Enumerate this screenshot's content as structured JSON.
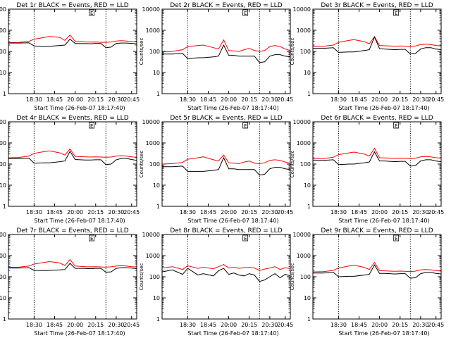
{
  "figure": {
    "y_axis_label": "Counts/sec",
    "x_axis_label": "Start Time (26-Feb-07 18:17:40)",
    "x_tick_labels": [
      "18:30",
      "18:45",
      "20:00",
      "20:15",
      "20:30",
      "20:45"
    ],
    "y_tick_labels": [
      "1",
      "10",
      "100",
      "1000",
      "10000"
    ],
    "legend_marker": "E"
  },
  "chart_data": [
    {
      "type": "line",
      "title": "Det 1r BLACK = Events, RED = LLD",
      "xlabel": "Start Time (26-Feb-07 18:17:40)",
      "ylabel": "Counts/sec",
      "y_scale": "log",
      "ylim": [
        1,
        10000
      ],
      "x_ticks": [
        "18:30",
        "18:45",
        "20:00",
        "20:15",
        "20:30",
        "20:45"
      ],
      "x": [
        0,
        0.08,
        0.16,
        0.2,
        0.28,
        0.32,
        0.4,
        0.44,
        0.48,
        0.52,
        0.56,
        0.6,
        0.64,
        0.68,
        0.72,
        0.76,
        0.8,
        0.84,
        0.88,
        0.92,
        0.96,
        1
      ],
      "dotted_vlines": [
        0.2,
        0.76
      ],
      "series": [
        {
          "name": "Events",
          "color": "#000000",
          "values": [
            250,
            250,
            255,
            180,
            170,
            175,
            190,
            200,
            380,
            240,
            235,
            235,
            230,
            240,
            240,
            150,
            160,
            240,
            250,
            250,
            240,
            230
          ]
        },
        {
          "name": "LLD",
          "color": "#ff0000",
          "values": [
            260,
            265,
            300,
            380,
            460,
            510,
            460,
            330,
            600,
            300,
            290,
            280,
            275,
            280,
            270,
            270,
            280,
            310,
            320,
            310,
            290,
            280
          ]
        }
      ]
    },
    {
      "type": "line",
      "title": "Det 2r BLACK = Events, RED = LLD",
      "xlabel": "Start Time (26-Feb-07 18:17:40)",
      "ylabel": "Counts/sec",
      "y_scale": "log",
      "ylim": [
        1,
        10000
      ],
      "x_ticks": [
        "18:30",
        "18:45",
        "20:00",
        "20:15",
        "20:30",
        "20:45"
      ],
      "x": [
        0,
        0.08,
        0.16,
        0.2,
        0.28,
        0.32,
        0.4,
        0.44,
        0.48,
        0.52,
        0.56,
        0.6,
        0.64,
        0.68,
        0.72,
        0.76,
        0.8,
        0.84,
        0.88,
        0.92,
        0.96,
        1
      ],
      "dotted_vlines": [
        0.2,
        0.76
      ],
      "series": [
        {
          "name": "Events",
          "color": "#000000",
          "values": [
            75,
            75,
            80,
            45,
            50,
            50,
            55,
            60,
            200,
            65,
            65,
            60,
            60,
            60,
            60,
            30,
            32,
            60,
            70,
            70,
            60,
            55
          ]
        },
        {
          "name": "LLD",
          "color": "#ff0000",
          "values": [
            95,
            100,
            120,
            170,
            190,
            200,
            150,
            130,
            350,
            110,
            105,
            100,
            120,
            140,
            110,
            100,
            110,
            170,
            190,
            170,
            130,
            110
          ]
        }
      ]
    },
    {
      "type": "line",
      "title": "Det 3r BLACK = Events, RED = LLD",
      "xlabel": "Start Time (26-Feb-07 18:17:40)",
      "ylabel": "Counts/sec",
      "y_scale": "log",
      "ylim": [
        1,
        10000
      ],
      "x_ticks": [
        "18:30",
        "18:45",
        "20:00",
        "20:15",
        "20:30",
        "20:45"
      ],
      "x": [
        0,
        0.08,
        0.16,
        0.2,
        0.28,
        0.32,
        0.4,
        0.44,
        0.48,
        0.52,
        0.56,
        0.6,
        0.64,
        0.68,
        0.72,
        0.76,
        0.8,
        0.84,
        0.88,
        0.92,
        0.96,
        1
      ],
      "dotted_vlines": [
        0.2,
        0.76
      ],
      "series": [
        {
          "name": "Events",
          "color": "#000000",
          "values": [
            140,
            140,
            150,
            90,
            95,
            95,
            110,
            120,
            480,
            135,
            130,
            125,
            120,
            125,
            125,
            75,
            80,
            130,
            150,
            150,
            130,
            120
          ]
        },
        {
          "name": "LLD",
          "color": "#ff0000",
          "values": [
            170,
            175,
            200,
            270,
            330,
            360,
            290,
            230,
            500,
            190,
            185,
            180,
            175,
            180,
            175,
            170,
            180,
            210,
            220,
            210,
            190,
            180
          ]
        }
      ]
    },
    {
      "type": "line",
      "title": "Det 4r BLACK = Events, RED = LLD",
      "xlabel": "Start Time (26-Feb-07 18:17:40)",
      "ylabel": "Counts/sec",
      "y_scale": "log",
      "ylim": [
        1,
        10000
      ],
      "x_ticks": [
        "18:30",
        "18:45",
        "20:00",
        "20:15",
        "20:30",
        "20:45"
      ],
      "x": [
        0,
        0.08,
        0.16,
        0.2,
        0.28,
        0.32,
        0.4,
        0.44,
        0.48,
        0.52,
        0.56,
        0.6,
        0.64,
        0.68,
        0.72,
        0.76,
        0.8,
        0.84,
        0.88,
        0.92,
        0.96,
        1
      ],
      "dotted_vlines": [
        0.2,
        0.76
      ],
      "series": [
        {
          "name": "Events",
          "color": "#000000",
          "values": [
            180,
            180,
            190,
            110,
            115,
            115,
            130,
            140,
            400,
            165,
            160,
            155,
            155,
            160,
            160,
            95,
            100,
            160,
            185,
            185,
            165,
            150
          ]
        },
        {
          "name": "LLD",
          "color": "#ff0000",
          "values": [
            200,
            205,
            240,
            320,
            390,
            420,
            340,
            270,
            520,
            230,
            225,
            220,
            215,
            220,
            215,
            210,
            215,
            240,
            250,
            240,
            220,
            210
          ]
        }
      ]
    },
    {
      "type": "line",
      "title": "Det 5r BLACK = Events, RED = LLD",
      "xlabel": "Start Time (26-Feb-07 18:17:40)",
      "ylabel": "Counts/sec",
      "y_scale": "log",
      "ylim": [
        1,
        10000
      ],
      "x_ticks": [
        "18:30",
        "18:45",
        "20:00",
        "20:15",
        "20:30",
        "20:45"
      ],
      "x": [
        0,
        0.08,
        0.16,
        0.2,
        0.28,
        0.32,
        0.4,
        0.44,
        0.48,
        0.52,
        0.56,
        0.6,
        0.64,
        0.68,
        0.72,
        0.76,
        0.8,
        0.84,
        0.88,
        0.92,
        0.96,
        1
      ],
      "dotted_vlines": [
        0.2,
        0.76
      ],
      "series": [
        {
          "name": "Events",
          "color": "#000000",
          "values": [
            75,
            75,
            80,
            45,
            45,
            45,
            50,
            55,
            200,
            60,
            60,
            55,
            55,
            55,
            55,
            30,
            33,
            60,
            70,
            70,
            60,
            55
          ]
        },
        {
          "name": "LLD",
          "color": "#ff0000",
          "values": [
            100,
            105,
            120,
            170,
            200,
            220,
            160,
            140,
            270,
            115,
            110,
            105,
            125,
            140,
            110,
            105,
            115,
            150,
            160,
            150,
            125,
            110
          ]
        }
      ]
    },
    {
      "type": "line",
      "title": "Det 6r BLACK = Events, RED = LLD",
      "xlabel": "Start Time (26-Feb-07 18:17:40)",
      "ylabel": "Counts/sec",
      "y_scale": "log",
      "ylim": [
        1,
        10000
      ],
      "x_ticks": [
        "18:30",
        "18:45",
        "20:00",
        "20:15",
        "20:30",
        "20:45"
      ],
      "x": [
        0,
        0.08,
        0.16,
        0.2,
        0.28,
        0.32,
        0.4,
        0.44,
        0.48,
        0.52,
        0.56,
        0.6,
        0.64,
        0.68,
        0.72,
        0.76,
        0.8,
        0.84,
        0.88,
        0.92,
        0.96,
        1
      ],
      "dotted_vlines": [
        0.2,
        0.76
      ],
      "series": [
        {
          "name": "Events",
          "color": "#000000",
          "values": [
            150,
            150,
            160,
            95,
            100,
            100,
            115,
            125,
            380,
            140,
            140,
            135,
            130,
            135,
            135,
            80,
            85,
            140,
            160,
            160,
            140,
            130
          ]
        },
        {
          "name": "LLD",
          "color": "#ff0000",
          "values": [
            175,
            180,
            210,
            280,
            340,
            370,
            300,
            240,
            560,
            200,
            195,
            190,
            185,
            190,
            185,
            180,
            190,
            220,
            230,
            220,
            200,
            190
          ]
        }
      ]
    },
    {
      "type": "line",
      "title": "Det 7r BLACK = Events, RED = LLD",
      "xlabel": "Start Time (26-Feb-07 18:17:40)",
      "ylabel": "Counts/sec",
      "y_scale": "log",
      "ylim": [
        1,
        10000
      ],
      "x_ticks": [
        "18:30",
        "18:45",
        "20:00",
        "20:15",
        "20:30",
        "20:45"
      ],
      "x": [
        0,
        0.08,
        0.16,
        0.2,
        0.28,
        0.32,
        0.4,
        0.44,
        0.48,
        0.52,
        0.56,
        0.6,
        0.64,
        0.68,
        0.72,
        0.76,
        0.8,
        0.84,
        0.88,
        0.92,
        0.96,
        1
      ],
      "dotted_vlines": [
        0.2,
        0.76
      ],
      "series": [
        {
          "name": "Events",
          "color": "#000000",
          "values": [
            260,
            260,
            270,
            200,
            195,
            200,
            210,
            220,
            430,
            250,
            250,
            245,
            240,
            250,
            250,
            165,
            170,
            250,
            270,
            270,
            255,
            240
          ]
        },
        {
          "name": "LLD",
          "color": "#ff0000",
          "values": [
            280,
            285,
            320,
            400,
            480,
            520,
            450,
            340,
            650,
            320,
            310,
            300,
            295,
            300,
            290,
            285,
            295,
            320,
            330,
            320,
            300,
            290
          ]
        }
      ]
    },
    {
      "type": "line",
      "title": "Det 8r BLACK = Events, RED = LLD",
      "xlabel": "Start Time (26-Feb-07 18:17:40)",
      "ylabel": "Counts/sec",
      "y_scale": "log",
      "ylim": [
        1,
        10000
      ],
      "x_ticks": [
        "18:30",
        "18:45",
        "20:00",
        "20:15",
        "20:30",
        "20:45"
      ],
      "x": [
        0,
        0.08,
        0.16,
        0.2,
        0.28,
        0.32,
        0.4,
        0.44,
        0.48,
        0.52,
        0.56,
        0.6,
        0.64,
        0.68,
        0.72,
        0.76,
        0.8,
        0.84,
        0.88,
        0.92,
        0.96,
        1
      ],
      "dotted_vlines": [
        0.2,
        0.76
      ],
      "series": [
        {
          "name": "Events",
          "color": "#000000",
          "values": [
            170,
            210,
            130,
            250,
            120,
            140,
            110,
            190,
            250,
            130,
            150,
            120,
            110,
            140,
            120,
            60,
            70,
            100,
            140,
            90,
            130,
            110
          ]
        },
        {
          "name": "LLD",
          "color": "#ff0000",
          "values": [
            260,
            300,
            220,
            330,
            250,
            280,
            240,
            300,
            380,
            260,
            280,
            250,
            270,
            280,
            260,
            200,
            230,
            260,
            300,
            220,
            270,
            240
          ]
        }
      ]
    },
    {
      "type": "line",
      "title": "Det 9r BLACK = Events, RED = LLD",
      "xlabel": "Start Time (26-Feb-07 18:17:40)",
      "ylabel": "Counts/sec",
      "y_scale": "log",
      "ylim": [
        1,
        10000
      ],
      "x_ticks": [
        "18:30",
        "18:45",
        "20:00",
        "20:15",
        "20:30",
        "20:45"
      ],
      "x": [
        0,
        0.08,
        0.16,
        0.2,
        0.28,
        0.32,
        0.4,
        0.44,
        0.48,
        0.52,
        0.56,
        0.6,
        0.64,
        0.68,
        0.72,
        0.76,
        0.8,
        0.84,
        0.88,
        0.92,
        0.96,
        1
      ],
      "dotted_vlines": [
        0.2,
        0.76
      ],
      "series": [
        {
          "name": "Events",
          "color": "#000000",
          "values": [
            150,
            150,
            160,
            100,
            105,
            105,
            120,
            130,
            360,
            145,
            145,
            140,
            135,
            140,
            140,
            85,
            90,
            140,
            160,
            160,
            145,
            135
          ]
        },
        {
          "name": "LLD",
          "color": "#ff0000",
          "values": [
            170,
            175,
            200,
            260,
            320,
            350,
            280,
            220,
            480,
            195,
            190,
            185,
            180,
            185,
            180,
            175,
            185,
            210,
            220,
            210,
            195,
            185
          ]
        }
      ]
    }
  ]
}
